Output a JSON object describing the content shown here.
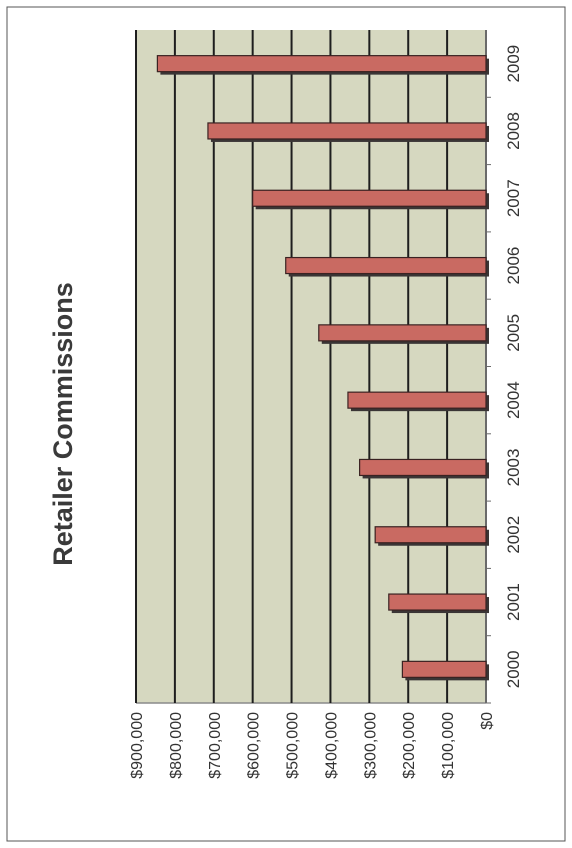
{
  "chart_data": {
    "type": "bar",
    "orientation": "rotated-90-clockwise",
    "title": "Retailer Commissions",
    "xlabel": "",
    "ylabel": "",
    "categories": [
      "2000",
      "2001",
      "2002",
      "2003",
      "2004",
      "2005",
      "2006",
      "2007",
      "2008",
      "2009"
    ],
    "values": [
      215000,
      250000,
      285000,
      325000,
      355000,
      430000,
      515000,
      600000,
      715000,
      845000
    ],
    "ylim": [
      0,
      900000
    ],
    "y_ticks": [
      0,
      100000,
      200000,
      300000,
      400000,
      500000,
      600000,
      700000,
      800000,
      900000
    ],
    "y_tick_labels": [
      "$0",
      "$100,000",
      "$200,000",
      "$300,000",
      "$400,000",
      "$500,000",
      "$600,000",
      "$700,000",
      "$800,000",
      "$900,000"
    ],
    "grid": true,
    "legend": "none",
    "colors": {
      "plot_background": "#d6d8c0",
      "bar_fill": "#c96a62",
      "bar_stroke": "#3a2222",
      "bar_shadow": "#3a3535",
      "gridline": "#1e1e1e",
      "text": "#333333",
      "frame": "#555555"
    }
  }
}
